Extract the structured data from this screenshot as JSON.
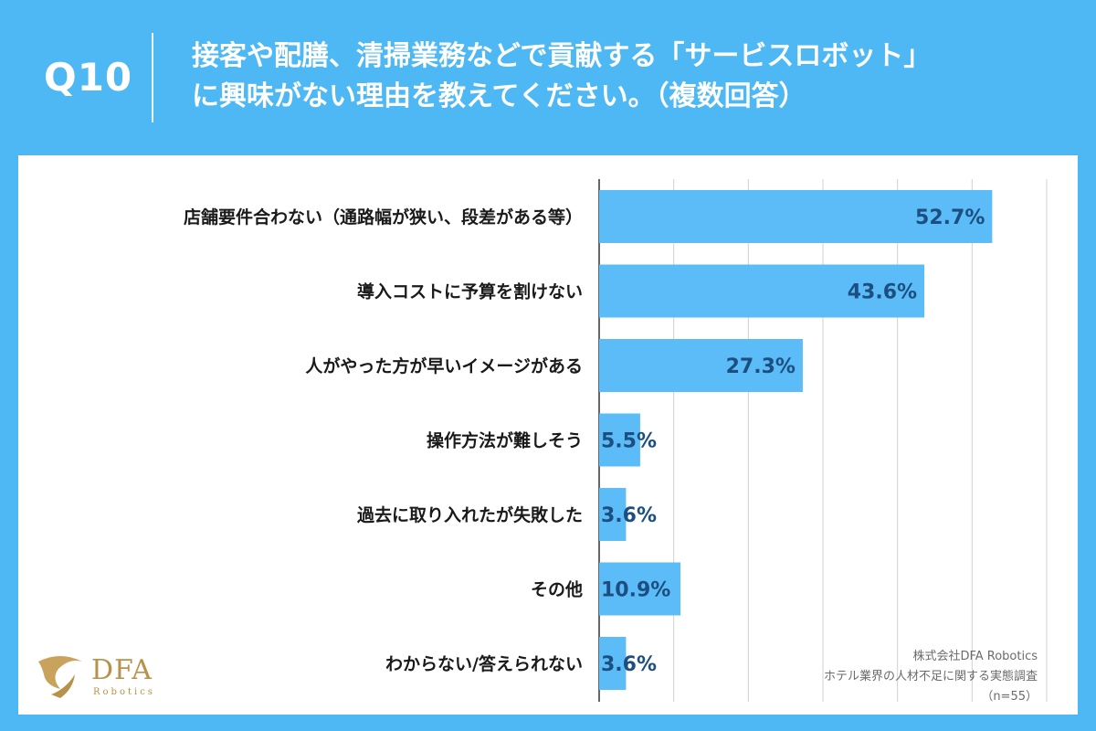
{
  "header": {
    "qnum": "Q10",
    "title_line1": "接客や配膳、清掃業務などで貢献する「サービスロボット」",
    "title_line2": "に興味がない理由を教えてください。（複数回答）"
  },
  "chart_data": {
    "type": "bar",
    "orientation": "horizontal",
    "categories": [
      "店舗要件合わない（通路幅が狭い、段差がある等）",
      "導入コストに予算を割けない",
      "人がやった方が早いイメージがある",
      "操作方法が難しそう",
      "過去に取り入れたが失敗した",
      "その他",
      "わからない/答えられない"
    ],
    "values": [
      52.7,
      43.6,
      27.3,
      5.5,
      3.6,
      10.9,
      3.6
    ],
    "value_labels": [
      "52.7%",
      "43.6%",
      "27.3%",
      "5.5%",
      "3.6%",
      "10.9%",
      "3.6%"
    ],
    "xlim": [
      0,
      60
    ],
    "grid": true,
    "bar_color": "#5bbcf8",
    "label_color": "#1c4f80"
  },
  "source": {
    "line1": "株式会社DFA Robotics",
    "line2": "ホテル業界の人材不足に関する実態調査",
    "line3": "（n=55）"
  },
  "logo": {
    "text": "DFA",
    "sub": "Robotics",
    "color": "#b8924a"
  }
}
